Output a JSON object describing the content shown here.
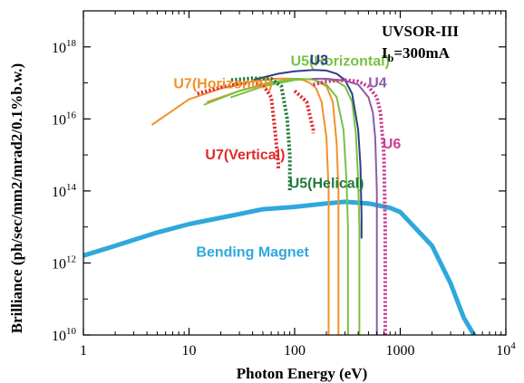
{
  "chart_data": {
    "type": "line",
    "xscale": "log",
    "yscale": "log",
    "xlim": [
      1,
      10000
    ],
    "ylim": [
      10000000000.0,
      1e+19
    ],
    "xlabel": "Photon Energy (eV)",
    "ylabel": "Brilliance (ph/sec/mm2/mrad2/0.1%b.w.)",
    "x_ticks": [
      {
        "value": 1,
        "label": "1"
      },
      {
        "value": 10,
        "label": "10"
      },
      {
        "value": 100,
        "label": "100"
      },
      {
        "value": 1000,
        "label": "1000"
      },
      {
        "value": 10000,
        "base": "10",
        "exp": "4"
      }
    ],
    "y_ticks": [
      {
        "value": 10000000000.0,
        "base": "10",
        "exp": "10"
      },
      {
        "value": 1000000000000.0,
        "base": "10",
        "exp": "12"
      },
      {
        "value": 100000000000000.0,
        "base": "10",
        "exp": "14"
      },
      {
        "value": 1e+16,
        "base": "10",
        "exp": "16"
      },
      {
        "value": 1e+18,
        "base": "10",
        "exp": "18"
      }
    ],
    "grid": false,
    "facility_label": {
      "line1": "UVSOR-III",
      "current_prefix": "I",
      "current_sub": "b",
      "current_value": "=300mA"
    },
    "series": [
      {
        "name": "Bending Magnet",
        "color": "#2fa8dc",
        "style": "solid",
        "width": 5,
        "branches": [
          {
            "x": [
              1,
              2,
              5,
              10,
              20,
              50,
              100,
              200,
              300,
              500,
              800,
              1000,
              2000,
              3000,
              4000,
              5000
            ],
            "y": [
              1600000000000.0,
              3000000000000.0,
              7000000000000.0,
              12000000000000.0,
              18000000000000.0,
              31000000000000.0,
              36000000000000.0,
              45000000000000.0,
              50000000000000.0,
              45000000000000.0,
              34000000000000.0,
              26000000000000.0,
              3000000000000.0,
              270000000000.0,
              30000000000.0,
              10000000000.0
            ]
          }
        ],
        "label": {
          "text": "Bending Magnet",
          "x": 40,
          "y": 1500000000000.0
        }
      },
      {
        "name": "U7(Horizontal)",
        "color": "#f0922a",
        "style": "solid",
        "width": 2,
        "branches": [
          {
            "x": [
              4.5,
              10,
              20,
              40,
              60,
              80,
              100,
              120,
              140,
              160,
              180,
              200,
              210,
              210
            ],
            "y": [
              7000000000000000.0,
              3.5e+16,
              7e+16,
              1.1e+17,
              1.3e+17,
              1.32e+17,
              1.3e+17,
              1.2e+17,
              1e+17,
              7e+16,
              3e+16,
              3000000000000000.0,
              100000000000000.0,
              10000000000.0
            ]
          },
          {
            "x": [
              15,
              30,
              60,
              100,
              150,
              200,
              230,
              250,
              260,
              260
            ],
            "y": [
              3e+16,
              6e+16,
              1e+17,
              1.3e+17,
              1.25e+17,
              8e+16,
              3e+16,
              2000000000000000.0,
              100000000000000.0,
              10000000000.0
            ]
          }
        ],
        "label": {
          "text": "U7(Horizontal)",
          "x": 21,
          "y": 7e+16
        }
      },
      {
        "name": "U5(Horizontal)",
        "color": "#7ac143",
        "style": "solid",
        "width": 2,
        "branches": [
          {
            "x": [
              14,
              30,
              60,
              100,
              150,
              200,
              250,
              290,
              310,
              320,
              320
            ],
            "y": [
              2.5e+16,
              6e+16,
              1.05e+17,
              1.3e+17,
              1.25e+17,
              9e+16,
              4e+16,
              5000000000000000.0,
              200000000000000.0,
              10000000000000.0,
              10000000000.0
            ]
          },
          {
            "x": [
              25,
              50,
              100,
              150,
              200,
              250,
              300,
              350,
              380,
              400,
              410,
              410
            ],
            "y": [
              4e+16,
              8e+16,
              1.2e+17,
              1.3e+17,
              1.28e+17,
              1.1e+17,
              8e+16,
              3e+16,
              4000000000000000.0,
              200000000000000.0,
              10000000000000.0,
              10000000000.0
            ]
          }
        ],
        "label": {
          "text": "U5(Horizontal)",
          "x": 270,
          "y": 3e+17
        }
      },
      {
        "name": "U3",
        "color": "#2d3e8c",
        "style": "solid",
        "width": 2,
        "branches": [
          {
            "x": [
              40,
              70,
              100,
              150,
              200,
              250,
              300,
              350,
              400,
              420,
              430,
              430
            ],
            "y": [
              1.2e+17,
              1.8e+17,
              2.1e+17,
              2.3e+17,
              2.2e+17,
              1.8e+17,
              1.2e+17,
              5e+16,
              5000000000000000.0,
              500000000000000.0,
              20000000000000.0,
              5000000000000.0
            ]
          }
        ],
        "label": {
          "text": "U3",
          "x": 170,
          "y": 3.2e+17
        }
      },
      {
        "name": "U4",
        "color": "#8b5da8",
        "style": "solid",
        "width": 2,
        "branches": [
          {
            "x": [
              150,
              200,
              300,
              400,
              500,
              550,
              580,
              600,
              600
            ],
            "y": [
              1.3e+17,
              1.3e+17,
              1.15e+17,
              9e+16,
              4e+16,
              1.5e+16,
              3000000000000000.0,
              100000000000000.0,
              10000000000.0
            ]
          }
        ],
        "label": {
          "text": "U4",
          "x": 610,
          "y": 7.5e+16
        }
      },
      {
        "name": "U6",
        "color": "#cc3d92",
        "style": "dotted",
        "width": 4,
        "branches": [
          {
            "x": [
              150,
              200,
              300,
              400,
              500,
              600,
              650,
              700,
              720,
              720
            ],
            "y": [
              9e+16,
              1.1e+17,
              1.2e+17,
              1.1e+17,
              8e+16,
              4e+16,
              1.5e+16,
              1000000000000000.0,
              10000000000000.0,
              10000000000.0
            ]
          }
        ],
        "label": {
          "text": "U6",
          "x": 830,
          "y": 1500000000000000.0
        }
      },
      {
        "name": "U7(Vertical)",
        "color": "#e02a2a",
        "style": "dotted",
        "width": 4,
        "branches": [
          {
            "x": [
              12,
              20,
              30,
              40,
              50,
              60,
              65,
              70,
              70
            ],
            "y": [
              5e+16,
              7.5e+16,
              9.5e+16,
              1e+17,
              9e+16,
              4e+16,
              5000000000000000.0,
              600000000000000.0,
              400000000000000.0
            ]
          },
          {
            "x": [
              100,
              130,
              150,
              150
            ],
            "y": [
              6e+16,
              3e+16,
              5000000000000000.0,
              4000000000000000.0
            ]
          }
        ],
        "label": {
          "text": "U7(Vertical)",
          "x": 34,
          "y": 750000000000000.0
        }
      },
      {
        "name": "U5(Helical)",
        "color": "#1f7a3c",
        "style": "dotted",
        "width": 4,
        "branches": [
          {
            "x": [
              25,
              40,
              60,
              75,
              85,
              90,
              90
            ],
            "y": [
              1.2e+17,
              1.35e+17,
              1.3e+17,
              8e+16,
              1e+16,
              1000000000000000.0,
              100000000000000.0
            ]
          }
        ],
        "label": {
          "text": "U5(Helical)",
          "x": 200,
          "y": 120000000000000.0
        }
      }
    ]
  }
}
